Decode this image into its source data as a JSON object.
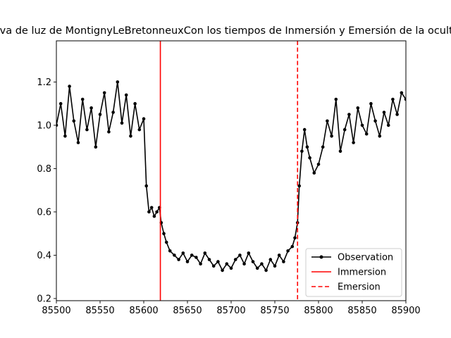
{
  "chart_data": {
    "type": "line",
    "title": "Curva de luz de MontignyLeBretonneuxCon los tiempos de Inmersión y Emersión de la ocultación",
    "xlabel": "",
    "ylabel": "",
    "xlim": [
      85500,
      85900
    ],
    "ylim": [
      0.19,
      1.39
    ],
    "xticks": [
      85500,
      85550,
      85600,
      85650,
      85700,
      85750,
      85800,
      85850,
      85900
    ],
    "yticks": [
      0.2,
      0.4,
      0.6,
      0.8,
      1.0,
      1.2
    ],
    "yticklabels": [
      "0.2",
      "0.4",
      "0.6",
      "0.8",
      "1.0",
      "1.2"
    ],
    "grid": false,
    "legend_position": "lower-right",
    "series": [
      {
        "name": "Observation",
        "color": "#000000",
        "marker": "dot",
        "x": [
          85500,
          85505,
          85510,
          85515,
          85520,
          85525,
          85530,
          85535,
          85540,
          85545,
          85550,
          85555,
          85560,
          85565,
          85570,
          85575,
          85580,
          85585,
          85590,
          85595,
          85600,
          85603,
          85606,
          85609,
          85612,
          85615,
          85618,
          85620,
          85623,
          85626,
          85630,
          85635,
          85640,
          85645,
          85650,
          85655,
          85660,
          85665,
          85670,
          85675,
          85680,
          85685,
          85690,
          85695,
          85700,
          85705,
          85710,
          85715,
          85720,
          85725,
          85730,
          85735,
          85740,
          85745,
          85750,
          85755,
          85760,
          85765,
          85770,
          85773,
          85776,
          85778,
          85781,
          85784,
          85787,
          85790,
          85795,
          85800,
          85805,
          85810,
          85815,
          85820,
          85825,
          85830,
          85835,
          85840,
          85845,
          85850,
          85855,
          85860,
          85865,
          85870,
          85875,
          85880,
          85885,
          85890,
          85895,
          85900
        ],
        "y": [
          1.0,
          1.1,
          0.95,
          1.18,
          1.02,
          0.92,
          1.12,
          0.98,
          1.08,
          0.9,
          1.05,
          1.15,
          0.97,
          1.06,
          1.2,
          1.01,
          1.14,
          0.95,
          1.1,
          0.98,
          1.03,
          0.72,
          0.6,
          0.62,
          0.58,
          0.6,
          0.62,
          0.55,
          0.5,
          0.46,
          0.42,
          0.4,
          0.38,
          0.41,
          0.37,
          0.4,
          0.39,
          0.36,
          0.41,
          0.38,
          0.35,
          0.37,
          0.33,
          0.36,
          0.34,
          0.38,
          0.4,
          0.36,
          0.41,
          0.37,
          0.34,
          0.36,
          0.33,
          0.38,
          0.35,
          0.4,
          0.37,
          0.42,
          0.44,
          0.48,
          0.55,
          0.72,
          0.88,
          0.98,
          0.9,
          0.85,
          0.78,
          0.82,
          0.9,
          1.02,
          0.95,
          1.12,
          0.88,
          0.98,
          1.05,
          0.92,
          1.08,
          1.0,
          0.96,
          1.1,
          1.02,
          0.95,
          1.06,
          1.0,
          1.12,
          1.05,
          1.15,
          1.12
        ]
      },
      {
        "name": "Immersion",
        "color": "#ff0000",
        "style": "solid",
        "x": 85619
      },
      {
        "name": "Emersion",
        "color": "#ff0000",
        "style": "dashed",
        "x": 85776
      }
    ]
  }
}
